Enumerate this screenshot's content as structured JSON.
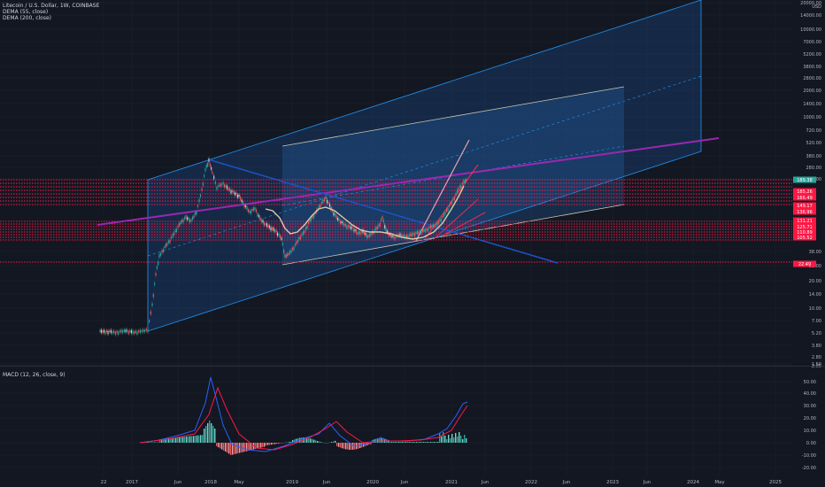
{
  "header": {
    "symbol_line": "Litecoin / U.S. Dollar, 1W, COINBASE",
    "indicators": [
      "DEMA (55, close)",
      "DEMA (200, close)"
    ]
  },
  "macd": {
    "label": "MACD (12, 26, close, 9)"
  },
  "colors": {
    "background": "#131722",
    "grid": "#1e222d",
    "axis_text": "#b2b5be",
    "candle_up": "#26a69a",
    "candle_down": "#ef5350",
    "channel_fill": "#2962ff",
    "channel_line": "#2196f3",
    "trendline_purple": "#9c27b0",
    "sr_line": "#ff1744",
    "dema_fast": "#e0c9a6",
    "macd_line": "#2962ff",
    "signal_line": "#ff1744"
  },
  "chart_data": {
    "type": "candlestick",
    "log_scale": true,
    "x_ticks": [
      "22",
      "2017",
      "Jun",
      "2018",
      "May",
      "2019",
      "Jun",
      "2020",
      "Jun",
      "2021",
      "Jun",
      "2022",
      "Jun",
      "2023",
      "Jun",
      "2024",
      "May",
      "2025"
    ],
    "y_unit": "USD",
    "y_ticks": [
      "20000.00",
      "14000.00",
      "10000.00",
      "7000.00",
      "5200.00",
      "3800.00",
      "2800.00",
      "2000.00",
      "1400.00",
      "1000.00",
      "720.00",
      "520.00",
      "380.00",
      "280.00",
      "200.00",
      "38.00",
      "28.00",
      "20.00",
      "14.00",
      "10.00",
      "7.00",
      "5.20",
      "3.80",
      "2.80",
      "2.05",
      "1.50"
    ],
    "price_labels": [
      {
        "text": "189.38",
        "kind": "last"
      },
      {
        "text": "185.26",
        "kind": "level"
      },
      {
        "text": "166.49",
        "kind": "level"
      },
      {
        "text": "149.17",
        "kind": "level"
      },
      {
        "text": "136.96",
        "kind": "level"
      },
      {
        "text": "131.21",
        "kind": "level"
      },
      {
        "text": "125.71",
        "kind": "level"
      },
      {
        "text": "110.89",
        "kind": "level"
      },
      {
        "text": "105.52",
        "kind": "level"
      },
      {
        "text": "22.49",
        "kind": "level"
      }
    ],
    "macd_y_ticks": [
      "50.00",
      "40.00",
      "30.00",
      "20.00",
      "10.00",
      "0.00",
      "-10.00",
      "-20.00"
    ]
  }
}
